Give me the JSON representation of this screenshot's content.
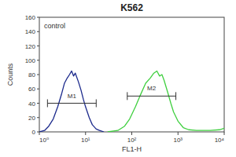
{
  "chart_data": {
    "type": "line",
    "title": "K562",
    "x_label": "FL1-H",
    "y_label": "Counts",
    "annotations": [
      "control"
    ],
    "log": "x",
    "grid": false,
    "xlim": [
      1,
      10000
    ],
    "ylim": [
      0,
      160
    ],
    "xticks": [
      {
        "value": 1,
        "label": "10⁰"
      },
      {
        "value": 10,
        "label": "10¹"
      },
      {
        "value": 100,
        "label": "10²"
      },
      {
        "value": 1000,
        "label": "10³"
      },
      {
        "value": 10000,
        "label": "10⁴"
      }
    ],
    "yticks": [
      0,
      20,
      40,
      60,
      80,
      100,
      120,
      140,
      160
    ],
    "series": [
      {
        "name": "control",
        "color": "#1c2a8c",
        "x": [
          1,
          1.3,
          1.6,
          2,
          2.5,
          3,
          3.5,
          4,
          4.5,
          5,
          5.5,
          6,
          7,
          8,
          9,
          10,
          12,
          14,
          17,
          20,
          25
        ],
        "values": [
          0,
          2,
          8,
          18,
          35,
          52,
          68,
          75,
          80,
          85,
          78,
          82,
          70,
          58,
          45,
          35,
          20,
          10,
          4,
          2,
          0
        ]
      },
      {
        "color": "#3fcf3f",
        "x": [
          30,
          50,
          70,
          90,
          120,
          150,
          200,
          250,
          300,
          350,
          400,
          450,
          500,
          600,
          700,
          800,
          1000,
          1300,
          1700,
          2500,
          5000,
          8000,
          10000
        ],
        "values": [
          0,
          2,
          8,
          18,
          35,
          50,
          68,
          75,
          82,
          85,
          78,
          80,
          72,
          55,
          40,
          28,
          15,
          6,
          3,
          2,
          2,
          3,
          5
        ]
      }
    ],
    "gates": [
      {
        "label": "M1",
        "x": [
          1.5,
          17
        ],
        "y": 40
      },
      {
        "label": "M2",
        "x": [
          80,
          900
        ],
        "y": 50
      }
    ]
  }
}
